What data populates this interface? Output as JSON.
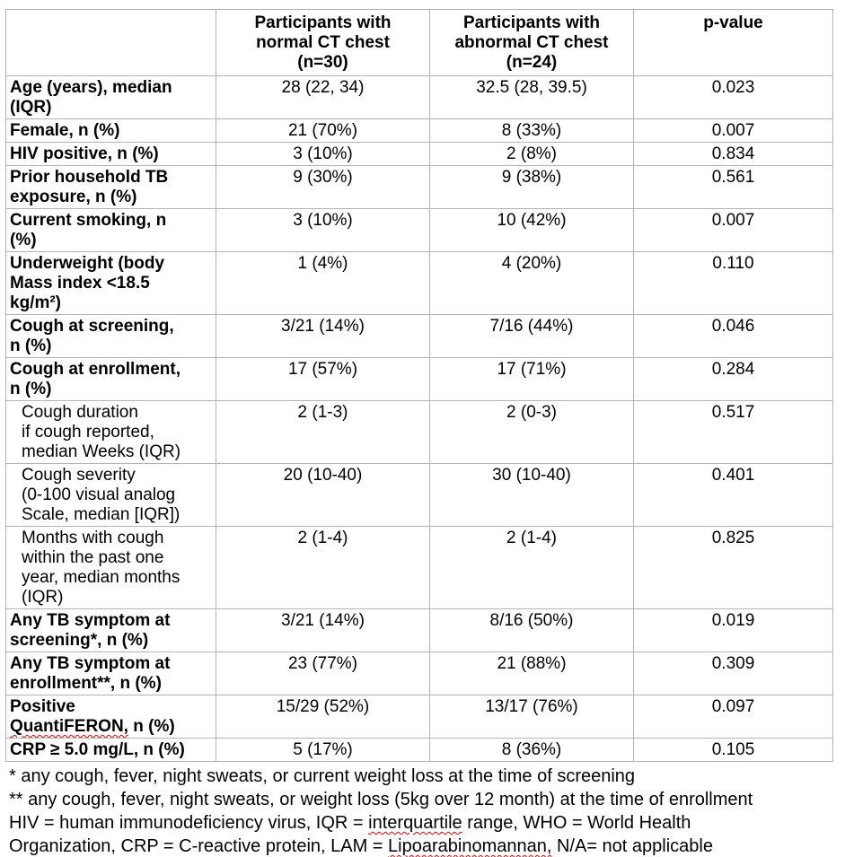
{
  "table": {
    "header": {
      "col_label": "",
      "col_normal": "Participants with\nnormal CT chest\n(n=30)",
      "col_abnormal": "Participants with\nabnormal CT chest\n(n=24)",
      "col_pvalue": "p-value"
    },
    "rows": [
      {
        "label": "Age (years), median\n(IQR)",
        "normal": "28 (22, 34)",
        "abnormal": "32.5 (28, 39.5)",
        "p": "0.023"
      },
      {
        "label": "Female, n (%)",
        "normal": "21 (70%)",
        "abnormal": "8 (33%)",
        "p": "0.007"
      },
      {
        "label": "HIV positive, n (%)",
        "normal": "3 (10%)",
        "abnormal": "2 (8%)",
        "p": "0.834"
      },
      {
        "label": "Prior household TB\nexposure, n (%)",
        "normal": "9 (30%)",
        "abnormal": "9 (38%)",
        "p": "0.561",
        "valign": "bottom"
      },
      {
        "label": "Current smoking, n\n(%)",
        "normal": "3 (10%)",
        "abnormal": "10 (42%)",
        "p": "0.007"
      },
      {
        "label": "Underweight (body\nMass index <18.5\nkg/m²)",
        "normal": "1 (4%)",
        "abnormal": "4 (20%)",
        "p": "0.110"
      },
      {
        "label": "Cough at screening,\nn (%)",
        "normal": "3/21 (14%)",
        "abnormal": "7/16 (44%)",
        "p": "0.046"
      },
      {
        "label": "Cough at enrollment,\nn (%)",
        "normal": "17 (57%)",
        "abnormal": "17 (71%)",
        "p": "0.284"
      },
      {
        "label": "Cough duration\nif cough reported,\nmedian Weeks (IQR)",
        "sub": true,
        "normal": "2 (1-3)",
        "abnormal": "2 (0-3)",
        "p": "0.517"
      },
      {
        "label": "Cough severity\n(0-100 visual analog\nScale, median [IQR])",
        "sub": true,
        "normal": "20 (10-40)",
        "abnormal": "30 (10-40)",
        "p": "0.401"
      },
      {
        "label": "Months with cough\nwithin the past one\nyear, median months\n(IQR)",
        "sub": true,
        "normal": "2 (1-4)",
        "abnormal": "2 (1-4)",
        "p": "0.825"
      },
      {
        "label": "Any TB symptom at\nscreening*, n (%)",
        "normal": "3/21 (14%)",
        "abnormal": "8/16 (50%)",
        "p": "0.019"
      },
      {
        "label": "Any TB symptom at\nenrollment**, n (%)",
        "normal": "23 (77%)",
        "abnormal": "21 (88%)",
        "p": "0.309"
      },
      {
        "label": "Positive\nQuantiFERON, n (%)",
        "normal": "15/29 (52%)",
        "abnormal": "13/17 (76%)",
        "p": "0.097"
      },
      {
        "label": "CRP ≥ 5.0 mg/L, n (%)",
        "normal": "5 (17%)",
        "abnormal": "8 (36%)",
        "p": "0.105"
      }
    ]
  },
  "footnotes": [
    "* any cough, fever, night sweats, or current weight loss at the time of screening",
    "** any cough, fever, night sweats, or weight loss (5kg over 12 month) at the time of enrollment",
    "HIV = human immunodeficiency virus, IQR = interquartile range, WHO = World Health",
    "Organization, CRP = C-reactive protein, LAM = Lipoarabinomannan, N/A= not applicable"
  ],
  "spellcheck_misspelled": [
    "QuantiFERON,",
    "interquartile",
    "Lipoarabinomannan,"
  ],
  "colors": {
    "border": "#b3b3b3",
    "squiggle": "#e00000",
    "text": "#000000",
    "background": "#ffffff"
  }
}
